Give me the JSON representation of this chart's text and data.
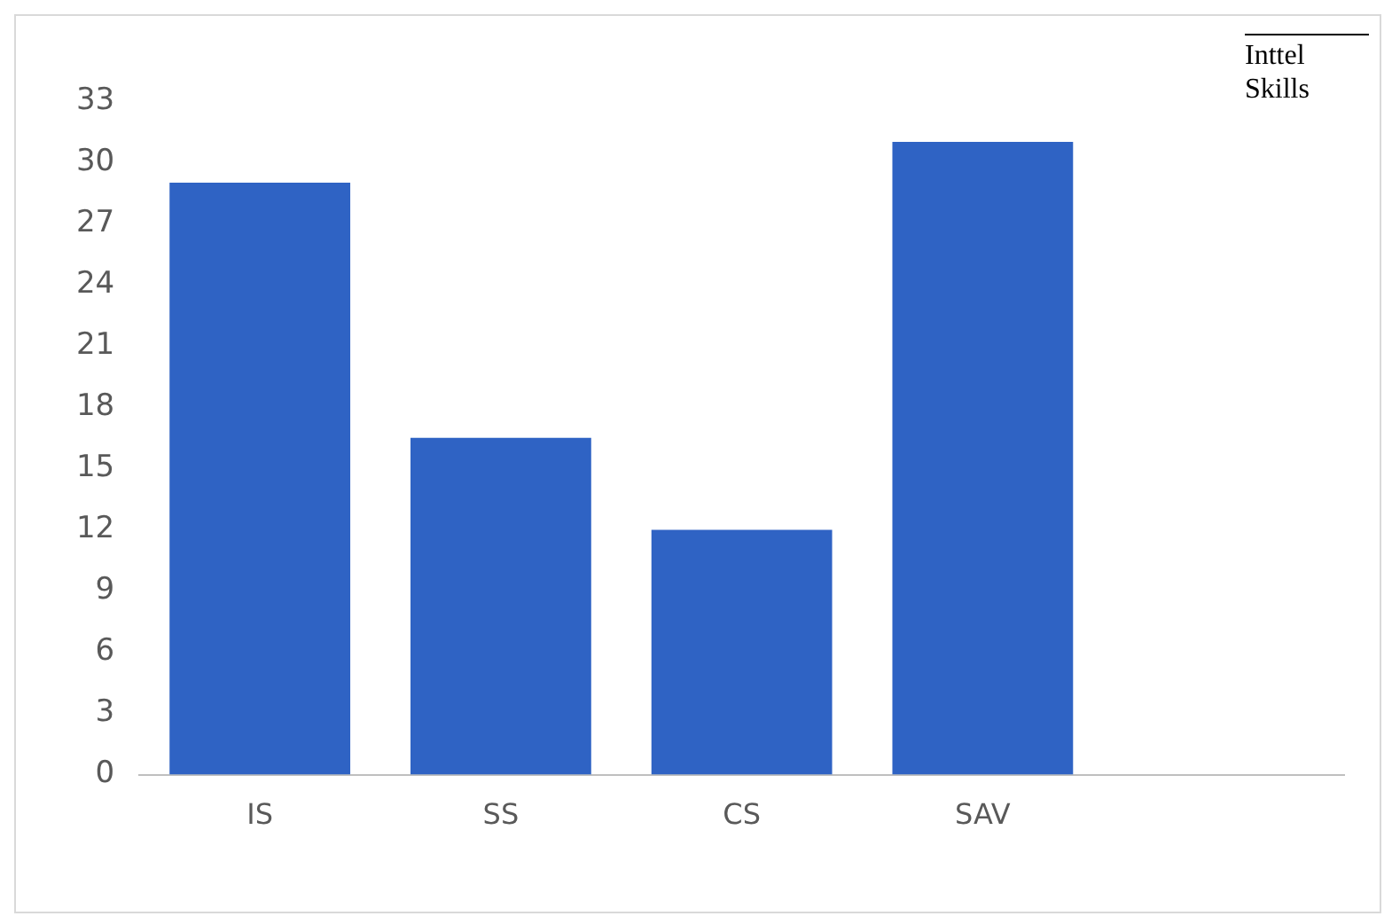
{
  "chart_data": {
    "type": "bar",
    "categories": [
      "IS",
      "SS",
      "CS",
      "SAV",
      null
    ],
    "values": [
      29,
      16.5,
      12,
      31,
      null
    ],
    "color": "#2f63c4",
    "ylim": [
      0,
      33
    ],
    "yticks": [
      0,
      3,
      6,
      9,
      12,
      15,
      18,
      21,
      24,
      27,
      30,
      33
    ],
    "grid": false,
    "legend": false,
    "annotations": [
      "Inttel Skills"
    ]
  }
}
